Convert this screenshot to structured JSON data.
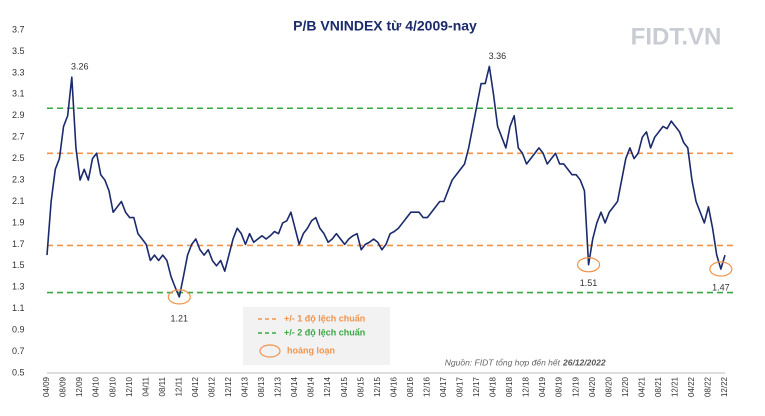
{
  "chart_data": {
    "type": "line",
    "title": "P/B VNINDEX từ 4/2009-nay",
    "logo": "FIDT.VN",
    "source": "Nguồn: FIDT tổng hợp đến hết",
    "source_date": "26/12/2022",
    "categories": [
      "04/09",
      null,
      null,
      null,
      "08/09",
      null,
      null,
      null,
      "12/09",
      null,
      null,
      null,
      "04/10",
      null,
      null,
      null,
      "08/10",
      null,
      null,
      null,
      "12/10",
      null,
      null,
      null,
      "04/11",
      null,
      null,
      null,
      "08/11",
      null,
      null,
      null,
      "12/11",
      null,
      null,
      null,
      "04/12",
      null,
      null,
      null,
      "08/12",
      null,
      null,
      null,
      "12/12",
      null,
      null,
      null,
      "04/13",
      null,
      null,
      null,
      "08/13",
      null,
      null,
      null,
      "12/13",
      null,
      null,
      null,
      "04/14",
      null,
      null,
      null,
      "08/14",
      null,
      null,
      null,
      "12/14",
      null,
      null,
      null,
      "04/15",
      null,
      null,
      null,
      "08/15",
      null,
      null,
      null,
      "12/15",
      null,
      null,
      null,
      "04/16",
      null,
      null,
      null,
      "08/16",
      null,
      null,
      null,
      "12/16",
      null,
      null,
      null,
      "04/17",
      null,
      null,
      null,
      "08/17",
      null,
      null,
      null,
      "12/17",
      null,
      null,
      null,
      "04/18",
      null,
      null,
      null,
      "08/18",
      null,
      null,
      null,
      "12/18",
      null,
      null,
      null,
      "04/19",
      null,
      null,
      null,
      "08/19",
      null,
      null,
      null,
      "12/19",
      null,
      null,
      null,
      "04/20",
      null,
      null,
      null,
      "08/20",
      null,
      null,
      null,
      "12/20",
      null,
      null,
      null,
      "04/21",
      null,
      null,
      null,
      "08/21",
      null,
      null,
      null,
      "12/21",
      null,
      null,
      null,
      "04/22",
      null,
      null,
      null,
      "08/22",
      null,
      null,
      null,
      "12/22"
    ],
    "series": [
      {
        "name": "P/B VNINDEX",
        "color": "#1b2a6b",
        "values": [
          1.6,
          2.1,
          2.4,
          2.5,
          2.8,
          2.9,
          3.26,
          2.6,
          2.3,
          2.4,
          2.3,
          2.5,
          2.55,
          2.35,
          2.3,
          2.2,
          2.0,
          2.05,
          2.1,
          2.0,
          1.95,
          1.95,
          1.8,
          1.75,
          1.7,
          1.55,
          1.6,
          1.55,
          1.6,
          1.55,
          1.4,
          1.3,
          1.21,
          1.4,
          1.6,
          1.7,
          1.75,
          1.65,
          1.6,
          1.65,
          1.55,
          1.5,
          1.55,
          1.45,
          1.6,
          1.75,
          1.85,
          1.8,
          1.7,
          1.8,
          1.72,
          1.75,
          1.78,
          1.75,
          1.78,
          1.82,
          1.8,
          1.9,
          1.92,
          2.0,
          1.85,
          1.7,
          1.8,
          1.85,
          1.92,
          1.95,
          1.85,
          1.8,
          1.72,
          1.75,
          1.8,
          1.75,
          1.7,
          1.75,
          1.78,
          1.8,
          1.65,
          1.7,
          1.72,
          1.75,
          1.72,
          1.65,
          1.7,
          1.8,
          1.82,
          1.85,
          1.9,
          1.95,
          2.0,
          2.0,
          2.0,
          1.95,
          1.95,
          2.0,
          2.05,
          2.1,
          2.1,
          2.2,
          2.3,
          2.35,
          2.4,
          2.45,
          2.6,
          2.8,
          3.0,
          3.2,
          3.2,
          3.36,
          3.1,
          2.8,
          2.7,
          2.6,
          2.8,
          2.9,
          2.6,
          2.55,
          2.45,
          2.5,
          2.55,
          2.6,
          2.55,
          2.45,
          2.5,
          2.55,
          2.45,
          2.45,
          2.4,
          2.35,
          2.35,
          2.3,
          2.2,
          1.51,
          1.75,
          1.9,
          2.0,
          1.9,
          2.0,
          2.05,
          2.1,
          2.3,
          2.5,
          2.6,
          2.5,
          2.55,
          2.7,
          2.75,
          2.6,
          2.7,
          2.75,
          2.8,
          2.78,
          2.85,
          2.8,
          2.75,
          2.65,
          2.6,
          2.3,
          2.1,
          2.0,
          1.9,
          2.05,
          1.85,
          1.6,
          1.47,
          1.6
        ]
      }
    ],
    "bands": [
      {
        "name": "+/- 1 độ lệch chuẩn",
        "color": "#f0944d",
        "values": [
          1.69,
          2.55
        ]
      },
      {
        "name": "+/- 2 độ lệch chuẩn",
        "color": "#3aa845",
        "values": [
          1.25,
          2.97
        ]
      }
    ],
    "marker_legend": {
      "name": "hoảng loạn",
      "color": "#f0944d"
    },
    "ylim": [
      0.5,
      3.7
    ],
    "yticks": [
      0.5,
      0.7,
      0.9,
      1.1,
      1.3,
      1.5,
      1.7,
      1.9,
      2.1,
      2.3,
      2.5,
      2.7,
      2.9,
      3.1,
      3.3,
      3.5,
      3.7
    ],
    "grid": false
  }
}
